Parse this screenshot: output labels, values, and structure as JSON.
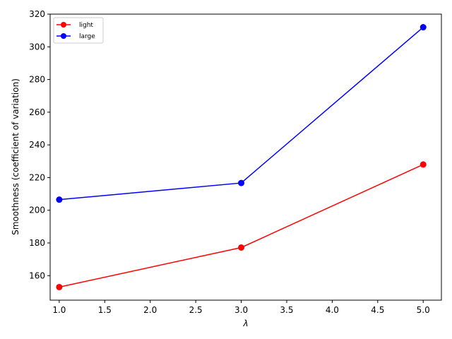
{
  "chart_data": {
    "type": "line",
    "title": "",
    "xlabel": "λ",
    "ylabel": "Smoothness (coefficient of variation)",
    "x": [
      1.0,
      3.0,
      5.0
    ],
    "xlim": [
      0.9,
      5.2
    ],
    "ylim": [
      145,
      320
    ],
    "xticks": [
      1.0,
      1.5,
      2.0,
      2.5,
      3.0,
      3.5,
      4.0,
      4.5,
      5.0
    ],
    "yticks": [
      160,
      180,
      200,
      220,
      240,
      260,
      280,
      300,
      320
    ],
    "xtick_labels": [
      "1.0",
      "1.5",
      "2.0",
      "2.5",
      "3.0",
      "3.5",
      "4.0",
      "4.5",
      "5.0"
    ],
    "ytick_labels": [
      "160",
      "180",
      "200",
      "220",
      "240",
      "260",
      "280",
      "300",
      "320"
    ],
    "grid": false,
    "legend_position": "top-left",
    "series": [
      {
        "name": "light",
        "color": "#ff0000",
        "values": [
          153.0,
          177.2,
          228.0
        ]
      },
      {
        "name": "large",
        "color": "#0000ff",
        "values": [
          206.5,
          216.7,
          312.0
        ]
      }
    ]
  }
}
